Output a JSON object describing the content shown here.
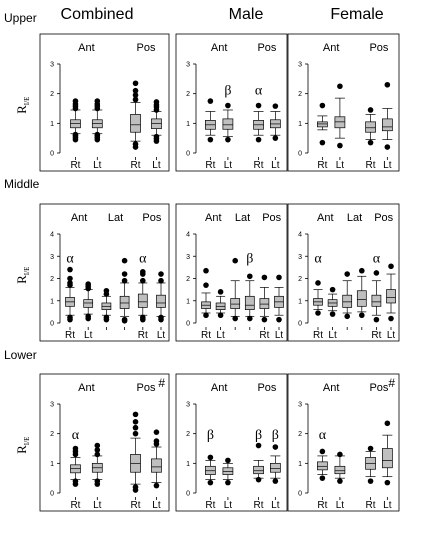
{
  "figure": {
    "columns": [
      "Combined",
      "Male",
      "Female"
    ],
    "rows": [
      "Upper",
      "Middle",
      "Lower"
    ],
    "ylabel_main": "R",
    "ylabel_sub": "I/E",
    "x_tick_labels": [
      "Rt",
      "Lt"
    ]
  },
  "chart_data": [
    {
      "type": "box",
      "row": "Upper",
      "column": "Combined",
      "ylim": [
        0,
        3
      ],
      "yticks": [
        "0",
        "1",
        "2",
        "3"
      ],
      "group_labels": [
        {
          "text": "Ant",
          "x": 0.5
        },
        {
          "text": "Pos",
          "x": 2.5
        }
      ],
      "categories": [
        "Rt",
        "Lt",
        "Rt",
        "Lt"
      ],
      "series": [
        {
          "position": 0,
          "q1": 0.85,
          "median": 1.0,
          "q3": 1.12,
          "whisker_low": 0.65,
          "whisker_high": 1.45,
          "outliers": [
            0.45,
            0.52,
            0.58,
            0.62,
            1.5,
            1.58,
            1.65,
            1.75
          ]
        },
        {
          "position": 1,
          "q1": 0.85,
          "median": 1.0,
          "q3": 1.12,
          "whisker_low": 0.65,
          "whisker_high": 1.45,
          "outliers": [
            0.45,
            0.52,
            0.58,
            0.62,
            1.5,
            1.58,
            1.65,
            1.75
          ]
        },
        {
          "position": 2,
          "q1": 0.7,
          "median": 0.95,
          "q3": 1.3,
          "whisker_low": 0.4,
          "whisker_high": 1.7,
          "outliers": [
            0.2,
            0.3,
            1.8,
            1.95,
            2.1,
            2.35
          ]
        },
        {
          "position": 3,
          "q1": 0.82,
          "median": 1.0,
          "q3": 1.15,
          "whisker_low": 0.6,
          "whisker_high": 1.4,
          "outliers": [
            0.4,
            0.48,
            0.55,
            1.45,
            1.55,
            1.62,
            1.72
          ]
        }
      ],
      "annotations": []
    },
    {
      "type": "box",
      "row": "Upper",
      "column": "Male",
      "ylim": [
        0,
        3
      ],
      "yticks": [
        "0",
        "1",
        "2",
        "3"
      ],
      "group_labels": [
        {
          "text": "Ant",
          "x": 0.5
        },
        {
          "text": "Pos",
          "x": 2.5
        }
      ],
      "categories": [
        "Rt",
        "Lt",
        "Rt",
        "Lt"
      ],
      "series": [
        {
          "position": 0,
          "q1": 0.8,
          "median": 0.95,
          "q3": 1.1,
          "whisker_low": 0.6,
          "whisker_high": 1.4,
          "outliers": [
            0.45,
            1.75
          ]
        },
        {
          "position": 1,
          "q1": 0.8,
          "median": 0.95,
          "q3": 1.15,
          "whisker_low": 0.55,
          "whisker_high": 1.45,
          "outliers": [
            0.45,
            1.6
          ]
        },
        {
          "position": 2,
          "q1": 0.8,
          "median": 0.95,
          "q3": 1.1,
          "whisker_low": 0.6,
          "whisker_high": 1.4,
          "outliers": [
            0.45,
            1.6
          ]
        },
        {
          "position": 3,
          "q1": 0.85,
          "median": 0.98,
          "q3": 1.12,
          "whisker_low": 0.6,
          "whisker_high": 1.4,
          "outliers": [
            0.5,
            1.58
          ]
        }
      ],
      "annotations": [
        {
          "text": "β",
          "x": 1,
          "y": 2.1
        },
        {
          "text": "α",
          "x": 2,
          "y": 2.1
        }
      ]
    },
    {
      "type": "box",
      "row": "Upper",
      "column": "Female",
      "ylim": [
        0,
        3
      ],
      "yticks": [
        "0",
        "1",
        "2",
        "3"
      ],
      "group_labels": [
        {
          "text": "Ant",
          "x": 0.5
        },
        {
          "text": "Pos",
          "x": 2.5
        }
      ],
      "categories": [
        "Rt",
        "Lt",
        "Rt",
        "Lt"
      ],
      "series": [
        {
          "position": 0,
          "q1": 0.88,
          "median": 0.98,
          "q3": 1.05,
          "whisker_low": 0.78,
          "whisker_high": 1.25,
          "outliers": [
            0.35,
            1.6
          ]
        },
        {
          "position": 1,
          "q1": 0.85,
          "median": 1.05,
          "q3": 1.22,
          "whisker_low": 0.5,
          "whisker_high": 1.85,
          "outliers": [
            0.25,
            2.25
          ]
        },
        {
          "position": 2,
          "q1": 0.7,
          "median": 0.85,
          "q3": 1.05,
          "whisker_low": 0.45,
          "whisker_high": 1.3,
          "outliers": [
            0.35,
            1.45
          ]
        },
        {
          "position": 3,
          "q1": 0.75,
          "median": 0.88,
          "q3": 1.15,
          "whisker_low": 0.45,
          "whisker_high": 1.5,
          "outliers": [
            0.2,
            2.3
          ]
        }
      ],
      "annotations": []
    },
    {
      "type": "box",
      "row": "Middle",
      "column": "Combined",
      "ylim": [
        0,
        4
      ],
      "yticks": [
        "0",
        "1",
        "2",
        "3",
        "4"
      ],
      "group_labels": [
        {
          "text": "Ant",
          "x": 0.5
        },
        {
          "text": "Lat",
          "x": 2.5
        },
        {
          "text": "Pos",
          "x": 4.5
        }
      ],
      "categories": [
        "Rt",
        "Lt",
        "",
        "",
        "Rt",
        "Lt"
      ],
      "series": [
        {
          "position": 0,
          "q1": 0.75,
          "median": 0.95,
          "q3": 1.15,
          "whisker_low": 0.35,
          "whisker_high": 1.6,
          "outliers": [
            0.15,
            0.25,
            1.7,
            1.8,
            2.0,
            2.4
          ]
        },
        {
          "position": 1,
          "q1": 0.7,
          "median": 0.9,
          "q3": 1.05,
          "whisker_low": 0.4,
          "whisker_high": 1.5,
          "outliers": [
            0.2,
            0.3,
            1.55,
            1.65,
            1.75
          ]
        },
        {
          "position": 2,
          "q1": 0.6,
          "median": 0.75,
          "q3": 0.9,
          "whisker_low": 0.35,
          "whisker_high": 1.2,
          "outliers": [
            0.15,
            0.25,
            1.3,
            1.45
          ]
        },
        {
          "position": 3,
          "q1": 0.65,
          "median": 0.9,
          "q3": 1.2,
          "whisker_low": 0.3,
          "whisker_high": 1.8,
          "outliers": [
            0.1,
            0.15,
            1.9,
            2.2,
            2.8
          ]
        },
        {
          "position": 4,
          "q1": 0.7,
          "median": 0.95,
          "q3": 1.3,
          "whisker_low": 0.35,
          "whisker_high": 1.8,
          "outliers": [
            0.15,
            0.25,
            1.9,
            2.2,
            2.3
          ]
        },
        {
          "position": 5,
          "q1": 0.7,
          "median": 0.9,
          "q3": 1.25,
          "whisker_low": 0.3,
          "whisker_high": 1.8,
          "outliers": [
            0.15,
            0.25,
            1.9,
            2.2
          ]
        }
      ],
      "annotations": [
        {
          "text": "α",
          "x": 0,
          "y": 2.9
        },
        {
          "text": "α",
          "x": 4,
          "y": 2.9
        }
      ]
    },
    {
      "type": "box",
      "row": "Middle",
      "column": "Male",
      "ylim": [
        0,
        4
      ],
      "yticks": [
        "0",
        "1",
        "2",
        "3",
        "4"
      ],
      "group_labels": [
        {
          "text": "Ant",
          "x": 0.5
        },
        {
          "text": "Lat",
          "x": 2.5
        },
        {
          "text": "Pos",
          "x": 4.5
        }
      ],
      "categories": [
        "Rt",
        "Lt",
        "",
        "",
        "Rt",
        "Lt"
      ],
      "series": [
        {
          "position": 0,
          "q1": 0.65,
          "median": 0.8,
          "q3": 0.95,
          "whisker_low": 0.45,
          "whisker_high": 1.35,
          "outliers": [
            0.35,
            1.7,
            2.35
          ]
        },
        {
          "position": 1,
          "q1": 0.6,
          "median": 0.75,
          "q3": 0.9,
          "whisker_low": 0.45,
          "whisker_high": 1.2,
          "outliers": [
            0.35,
            1.4
          ]
        },
        {
          "position": 2,
          "q1": 0.65,
          "median": 0.85,
          "q3": 1.1,
          "whisker_low": 0.3,
          "whisker_high": 1.9,
          "outliers": [
            0.2,
            2.8
          ]
        },
        {
          "position": 3,
          "q1": 0.6,
          "median": 0.8,
          "q3": 1.2,
          "whisker_low": 0.3,
          "whisker_high": 1.9,
          "outliers": [
            0.2,
            2.1
          ]
        },
        {
          "position": 4,
          "q1": 0.65,
          "median": 0.85,
          "q3": 1.1,
          "whisker_low": 0.3,
          "whisker_high": 1.6,
          "outliers": [
            0.15,
            2.05
          ]
        },
        {
          "position": 5,
          "q1": 0.7,
          "median": 0.95,
          "q3": 1.2,
          "whisker_low": 0.35,
          "whisker_high": 1.6,
          "outliers": [
            0.15,
            2.05
          ]
        }
      ],
      "annotations": [
        {
          "text": "β",
          "x": 3,
          "y": 2.9
        }
      ]
    },
    {
      "type": "box",
      "row": "Middle",
      "column": "Female",
      "ylim": [
        0,
        4
      ],
      "yticks": [
        "0",
        "1",
        "2",
        "3",
        "4"
      ],
      "group_labels": [
        {
          "text": "Ant",
          "x": 0.5
        },
        {
          "text": "Lat",
          "x": 2.5
        },
        {
          "text": "Pos",
          "x": 4.5
        }
      ],
      "categories": [
        "Rt",
        "Lt",
        "",
        "",
        "Rt",
        "Lt"
      ],
      "series": [
        {
          "position": 0,
          "q1": 0.8,
          "median": 0.95,
          "q3": 1.1,
          "whisker_low": 0.6,
          "whisker_high": 1.5,
          "outliers": [
            0.45,
            1.8
          ]
        },
        {
          "position": 1,
          "q1": 0.75,
          "median": 0.9,
          "q3": 1.05,
          "whisker_low": 0.55,
          "whisker_high": 1.3,
          "outliers": [
            0.4,
            1.5
          ]
        },
        {
          "position": 2,
          "q1": 0.7,
          "median": 0.95,
          "q3": 1.25,
          "whisker_low": 0.45,
          "whisker_high": 1.9,
          "outliers": [
            0.3,
            2.2
          ]
        },
        {
          "position": 3,
          "q1": 0.75,
          "median": 1.05,
          "q3": 1.45,
          "whisker_low": 0.5,
          "whisker_high": 2.1,
          "outliers": [
            0.35,
            2.35
          ]
        },
        {
          "position": 4,
          "q1": 0.75,
          "median": 0.95,
          "q3": 1.25,
          "whisker_low": 0.35,
          "whisker_high": 1.9,
          "outliers": [
            0.15,
            2.25
          ]
        },
        {
          "position": 5,
          "q1": 0.9,
          "median": 1.15,
          "q3": 1.5,
          "whisker_low": 0.45,
          "whisker_high": 2.2,
          "outliers": [
            0.2,
            2.55
          ]
        }
      ],
      "annotations": [
        {
          "text": "α",
          "x": 0,
          "y": 2.9
        },
        {
          "text": "α",
          "x": 4,
          "y": 2.9
        }
      ]
    },
    {
      "type": "box",
      "row": "Lower",
      "column": "Combined",
      "ylim": [
        0,
        3
      ],
      "yticks": [
        "0",
        "1",
        "2",
        "3"
      ],
      "group_labels": [
        {
          "text": "Ant",
          "x": 0.5
        },
        {
          "text": "Pos",
          "x": 2.5
        }
      ],
      "categories": [
        "Rt",
        "Lt",
        "Rt",
        "Lt"
      ],
      "series": [
        {
          "position": 0,
          "q1": 0.68,
          "median": 0.82,
          "q3": 0.95,
          "whisker_low": 0.45,
          "whisker_high": 1.2,
          "outliers": [
            0.3,
            0.4,
            1.3,
            1.4,
            1.5
          ]
        },
        {
          "position": 1,
          "q1": 0.7,
          "median": 0.85,
          "q3": 1.0,
          "whisker_low": 0.45,
          "whisker_high": 1.25,
          "outliers": [
            0.3,
            0.4,
            1.3,
            1.45,
            1.6
          ]
        },
        {
          "position": 2,
          "q1": 0.7,
          "median": 1.0,
          "q3": 1.3,
          "whisker_low": 0.3,
          "whisker_high": 1.85,
          "outliers": [
            0.1,
            0.2,
            2.0,
            2.2,
            2.4,
            2.65
          ]
        },
        {
          "position": 3,
          "q1": 0.7,
          "median": 0.88,
          "q3": 1.15,
          "whisker_low": 0.35,
          "whisker_high": 1.55,
          "outliers": [
            0.25,
            1.65,
            1.75,
            2.05
          ]
        }
      ],
      "annotations": [
        {
          "text": "α",
          "x": 0,
          "y": 1.95
        }
      ],
      "corner_mark": "#"
    },
    {
      "type": "box",
      "row": "Lower",
      "column": "Male",
      "ylim": [
        0,
        3
      ],
      "yticks": [
        "0",
        "1",
        "2",
        "3"
      ],
      "group_labels": [
        {
          "text": "Ant",
          "x": 0.5
        },
        {
          "text": "Pos",
          "x": 2.5
        }
      ],
      "categories": [
        "Rt",
        "Lt",
        "Rt",
        "Lt"
      ],
      "series": [
        {
          "position": 0,
          "q1": 0.62,
          "median": 0.75,
          "q3": 0.9,
          "whisker_low": 0.45,
          "whisker_high": 1.1,
          "outliers": [
            0.35,
            1.2
          ]
        },
        {
          "position": 1,
          "q1": 0.62,
          "median": 0.72,
          "q3": 0.85,
          "whisker_low": 0.45,
          "whisker_high": 1.0,
          "outliers": [
            0.35,
            1.1
          ]
        },
        {
          "position": 2,
          "q1": 0.65,
          "median": 0.75,
          "q3": 0.9,
          "whisker_low": 0.5,
          "whisker_high": 1.1,
          "outliers": [
            0.45,
            1.6
          ]
        },
        {
          "position": 3,
          "q1": 0.7,
          "median": 0.82,
          "q3": 1.0,
          "whisker_low": 0.5,
          "whisker_high": 1.25,
          "outliers": [
            0.4,
            1.55
          ]
        }
      ],
      "annotations": [
        {
          "text": "β",
          "x": 0,
          "y": 1.95
        },
        {
          "text": "β",
          "x": 2,
          "y": 1.95
        },
        {
          "text": "β",
          "x": 3,
          "y": 1.95
        }
      ]
    },
    {
      "type": "box",
      "row": "Lower",
      "column": "Female",
      "ylim": [
        0,
        3
      ],
      "yticks": [
        "0",
        "1",
        "2",
        "3"
      ],
      "group_labels": [
        {
          "text": "Ant",
          "x": 0.5
        },
        {
          "text": "Pos",
          "x": 2.5
        }
      ],
      "categories": [
        "Rt",
        "Lt",
        "Rt",
        "Lt"
      ],
      "series": [
        {
          "position": 0,
          "q1": 0.78,
          "median": 0.9,
          "q3": 1.05,
          "whisker_low": 0.62,
          "whisker_high": 1.25,
          "outliers": [
            0.5,
            1.4
          ]
        },
        {
          "position": 1,
          "q1": 0.65,
          "median": 0.75,
          "q3": 0.9,
          "whisker_low": 0.5,
          "whisker_high": 1.25,
          "outliers": [
            0.4,
            1.3
          ]
        },
        {
          "position": 2,
          "q1": 0.8,
          "median": 1.0,
          "q3": 1.2,
          "whisker_low": 0.55,
          "whisker_high": 1.4,
          "outliers": [
            0.4,
            1.5
          ]
        },
        {
          "position": 3,
          "q1": 0.85,
          "median": 1.1,
          "q3": 1.5,
          "whisker_low": 0.55,
          "whisker_high": 1.95,
          "outliers": [
            0.35,
            2.35
          ]
        }
      ],
      "annotations": [
        {
          "text": "α",
          "x": 0,
          "y": 1.95
        }
      ],
      "corner_mark": "#"
    }
  ]
}
